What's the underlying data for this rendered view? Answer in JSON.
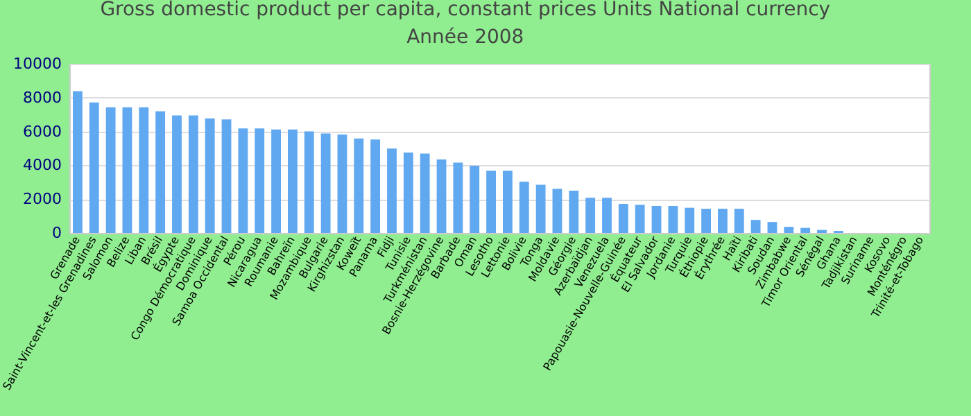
{
  "chart_data": {
    "type": "bar",
    "title": "Gross domestic product per capita, constant prices Units National currency",
    "subtitle": "Année 2008",
    "categories": [
      "Grenade",
      "Saint-Vincent-et-les Grenadines",
      "Salomon",
      "Belize",
      "Liban",
      "Brésil",
      "Égypte",
      "Congo Démocratique",
      "Dominique",
      "Samoa Occidental",
      "Pérou",
      "Nicaragua",
      "Roumanie",
      "Bahreïn",
      "Mozambique",
      "Bulgarie",
      "Kirghizstan",
      "Koweït",
      "Panama",
      "Fidji",
      "Tunisie",
      "Turkménistan",
      "Bosnie-Herzégovine",
      "Barbade",
      "Oman",
      "Lesotho",
      "Lettonie",
      "Bolivie",
      "Tonga",
      "Moldavie",
      "Géorgie",
      "Azerbaïdjan",
      "Venezuela",
      "Papouasie-Nouvelle-Guinée",
      "Équateur",
      "El Salvador",
      "Jordanie",
      "Turquie",
      "Éthiopie",
      "Érythrée",
      "Haïti",
      "Kiribati",
      "Soudan",
      "Zimbabwe",
      "Timor Oriental",
      "Sénégal",
      "Ghana",
      "Tadjikistan",
      "Suriname",
      "Kosovo",
      "Monténégro",
      "Trinité-et-Tobago"
    ],
    "values": [
      8380,
      7720,
      7430,
      7430,
      7430,
      7190,
      6950,
      6950,
      6770,
      6710,
      6180,
      6180,
      6120,
      6120,
      6000,
      5880,
      5820,
      5580,
      5520,
      4990,
      4750,
      4690,
      4340,
      4160,
      3980,
      3680,
      3680,
      3030,
      2850,
      2610,
      2500,
      2080,
      2080,
      1720,
      1660,
      1600,
      1600,
      1490,
      1430,
      1430,
      1430,
      770,
      650,
      360,
      300,
      180,
      120,
      null,
      null,
      null,
      null,
      null
    ],
    "color": "#60a8f0",
    "ylim": [
      0,
      10000
    ],
    "yticks": [
      0,
      2000,
      4000,
      6000,
      8000,
      10000
    ],
    "grid": "y"
  }
}
